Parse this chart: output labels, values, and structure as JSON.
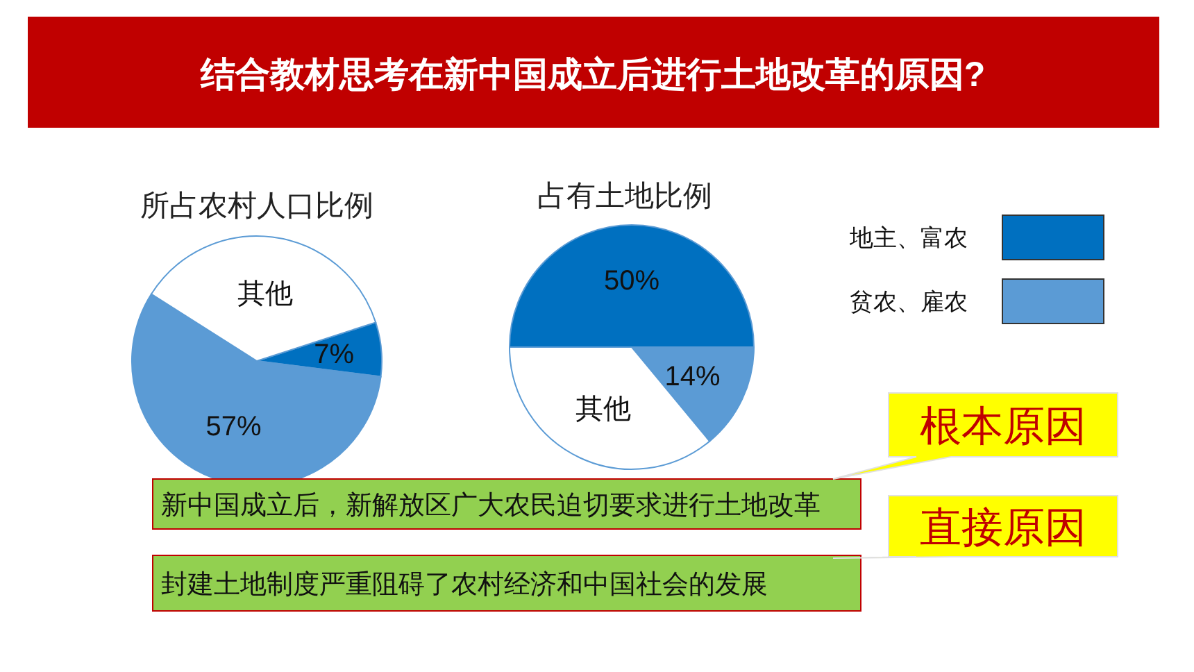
{
  "chart_data": [
    {
      "type": "pie",
      "title": "所占农村人口比例",
      "categories": [
        null,
        null,
        null
      ],
      "values": [
        7,
        57,
        36
      ],
      "colors": [
        "#0070c0",
        "#5b9bd5",
        "#ffffff"
      ],
      "value_labels": [
        "7%",
        "57%",
        "其他"
      ]
    },
    {
      "type": "pie",
      "title": "占有土地比例",
      "categories": [
        "地主、富农",
        "贫农、雇农",
        null
      ],
      "values": [
        50,
        14,
        36
      ],
      "colors": [
        "#0070c0",
        "#5b9bd5",
        "#ffffff"
      ],
      "value_labels": [
        "50%",
        "14%",
        "其他"
      ],
      "legend": "right"
    },
    {
      "type": "other",
      "title": "结合教材思考在新中国成立后进行土地改革的原因?",
      "annotations": [
        "新中国成立后，新解放区广大农民迫切要求进行土地改革",
        "封建土地制度严重阻碍了农村经济和中国社会的发展",
        "根本原因",
        "直接原因"
      ]
    }
  ]
}
